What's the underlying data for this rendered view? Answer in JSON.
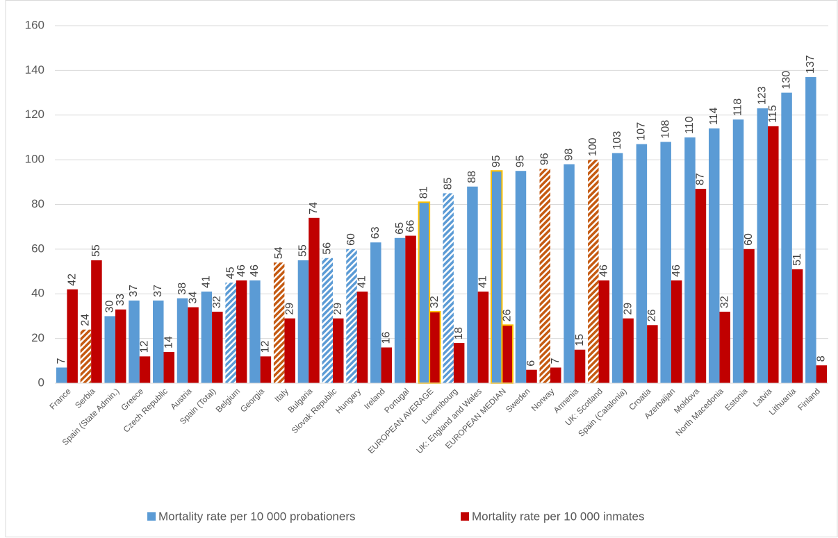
{
  "chart_data": {
    "type": "bar",
    "categories": [
      "France",
      "Serbia",
      "Spain (State Admin.)",
      "Greece",
      "Czech Republic",
      "Austria",
      "Spain (Total)",
      "Belgium",
      "Georgia",
      "Italy",
      "Bulgaria",
      "Slovak Republic",
      "Hungary",
      "Ireland",
      "Portugal",
      "EUROPEAN AVERAGE",
      "Luxembourg",
      "UK: England and Wales",
      "EUROPEAN MEDIAN",
      "Sweden",
      "Norway",
      "Armenia",
      "UK: Scotland",
      "Spain (Catalonia)",
      "Croatia",
      "Azerbaijan",
      "Moldova",
      "North Macedonia",
      "Estonia",
      "Latvia",
      "Lithuania",
      "Finland"
    ],
    "series": [
      {
        "name": "Mortality rate per 10 000 probationers",
        "color": "#5b9bd5",
        "values": [
          7,
          24,
          30,
          37,
          37,
          38,
          41,
          45,
          46,
          54,
          55,
          56,
          60,
          63,
          65,
          81,
          85,
          88,
          95,
          95,
          96,
          98,
          100,
          103,
          107,
          108,
          110,
          114,
          118,
          123,
          130,
          137
        ],
        "styles": [
          "solid",
          "hatch-orange",
          "solid",
          "solid",
          "solid",
          "solid",
          "solid",
          "hatch-blue",
          "solid",
          "hatch-orange",
          "solid",
          "hatch-blue",
          "hatch-blue",
          "solid",
          "solid",
          "outline-gold",
          "hatch-blue",
          "solid",
          "outline-gold",
          "solid",
          "hatch-orange",
          "solid",
          "hatch-orange",
          "solid",
          "solid",
          "solid",
          "solid",
          "solid",
          "solid",
          "solid",
          "solid",
          "solid"
        ]
      },
      {
        "name": "Mortality rate per 10 000 inmates",
        "color": "#c00000",
        "values": [
          42,
          55,
          33,
          12,
          14,
          34,
          32,
          46,
          12,
          29,
          74,
          29,
          41,
          16,
          66,
          32,
          18,
          41,
          26,
          6,
          7,
          15,
          46,
          29,
          26,
          46,
          87,
          32,
          60,
          115,
          51,
          8
        ],
        "styles": [
          "solid",
          "solid",
          "solid",
          "solid",
          "solid",
          "solid",
          "solid",
          "solid",
          "solid",
          "solid",
          "solid",
          "solid",
          "solid",
          "solid",
          "solid",
          "outline-gold",
          "solid",
          "solid",
          "outline-gold",
          "solid",
          "solid",
          "solid",
          "solid",
          "solid",
          "solid",
          "solid",
          "solid",
          "solid",
          "solid",
          "solid",
          "solid",
          "solid"
        ]
      }
    ],
    "ylim": [
      0,
      160
    ],
    "yticks": [
      0,
      20,
      40,
      60,
      80,
      100,
      120,
      140,
      160
    ],
    "grid": true,
    "legend": "bottom"
  }
}
